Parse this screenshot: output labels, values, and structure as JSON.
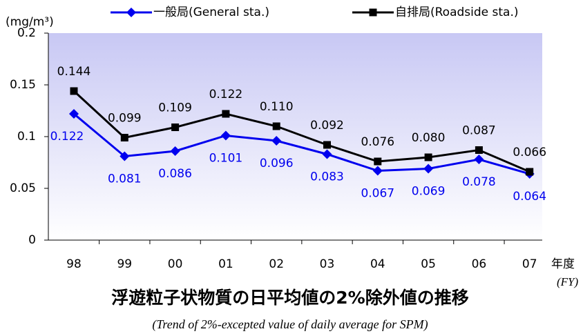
{
  "chart_data": {
    "type": "line",
    "title": "浮遊粒子状物質の日平均値の2%除外値の推移",
    "subtitle": "(Trend of 2%-excepted value of daily average for SPM)",
    "y_label": "(mg/m³)",
    "x_label": "年度",
    "x_label_en": "(FY)",
    "categories": [
      "98",
      "99",
      "00",
      "01",
      "02",
      "03",
      "04",
      "05",
      "06",
      "07"
    ],
    "series": [
      {
        "name": "一般局(General sta.)",
        "color": "#0000ee",
        "marker": "diamond",
        "values": [
          0.122,
          0.081,
          0.086,
          0.101,
          0.096,
          0.083,
          0.067,
          0.069,
          0.078,
          0.064
        ],
        "value_labels": [
          "0.122",
          "0.081",
          "0.086",
          "0.101",
          "0.096",
          "0.083",
          "0.067",
          "0.069",
          "0.078",
          "0.064"
        ]
      },
      {
        "name": "自排局(Roadside sta.)",
        "color": "#000000",
        "marker": "square",
        "values": [
          0.144,
          0.099,
          0.109,
          0.122,
          0.11,
          0.092,
          0.076,
          0.08,
          0.087,
          0.066
        ],
        "value_labels": [
          "0.144",
          "0.099",
          "0.109",
          "0.122",
          "0.110",
          "0.092",
          "0.076",
          "0.080",
          "0.087",
          "0.066"
        ]
      }
    ],
    "ylim": [
      0,
      0.2
    ],
    "yticks": [
      0,
      0.05,
      0.1,
      0.15,
      0.2
    ]
  }
}
